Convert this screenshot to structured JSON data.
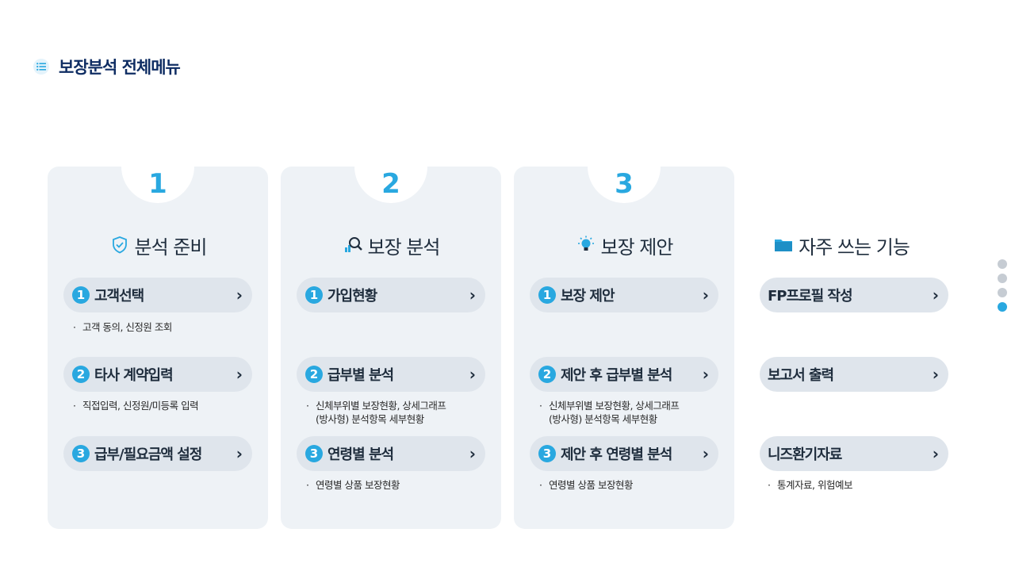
{
  "header": {
    "title": "보장분석 전체메뉴"
  },
  "columns": [
    {
      "number": "1",
      "title": "분석 준비",
      "icon": "shield-check-icon",
      "items": [
        {
          "num": "1",
          "label": "고객선택",
          "desc": [
            "고객 동의, 신정원 조회"
          ]
        },
        {
          "num": "2",
          "label": "타사 계약입력",
          "desc": [
            "직접입력, 신정원/미등록 입력"
          ]
        },
        {
          "num": "3",
          "label": "급부/필요금액 설정",
          "desc": []
        }
      ]
    },
    {
      "number": "2",
      "title": "보장 분석",
      "icon": "magnifier-chart-icon",
      "items": [
        {
          "num": "1",
          "label": "가입현황",
          "desc": []
        },
        {
          "num": "2",
          "label": "급부별 분석",
          "desc": [
            "신체부위별 보장현황, 상세그래프",
            "(방사형) 분석항목 세부현황"
          ]
        },
        {
          "num": "3",
          "label": "연령별 분석",
          "desc": [
            "연령별 상품 보장현황"
          ]
        }
      ]
    },
    {
      "number": "3",
      "title": "보장 제안",
      "icon": "lightbulb-icon",
      "items": [
        {
          "num": "1",
          "label": "보장 제안",
          "desc": []
        },
        {
          "num": "2",
          "label": "제안 후 급부별 분석",
          "desc": [
            "신체부위별 보장현황, 상세그래프",
            "(방사형) 분석항목 세부현황"
          ]
        },
        {
          "num": "3",
          "label": "제안 후 연령별 분석",
          "desc": [
            "연령별 상품 보장현황"
          ]
        }
      ]
    },
    {
      "title": "자주 쓰는 기능",
      "icon": "folder-icon",
      "items": [
        {
          "label": "FP프로필 작성",
          "desc": []
        },
        {
          "label": "보고서 출력",
          "desc": []
        },
        {
          "label": "니즈환기자료",
          "desc": [
            "통계자료, 위험예보"
          ]
        }
      ]
    }
  ],
  "pagination": {
    "count": 4,
    "active": 4
  },
  "colors": {
    "accent": "#29a8e0",
    "card_bg": "#eef2f6",
    "pill_bg": "#dfe5ec",
    "title": "#0f2d63"
  }
}
